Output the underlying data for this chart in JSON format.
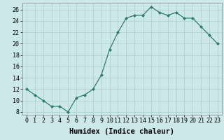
{
  "x": [
    0,
    1,
    2,
    3,
    4,
    5,
    6,
    7,
    8,
    9,
    10,
    11,
    12,
    13,
    14,
    15,
    16,
    17,
    18,
    19,
    20,
    21,
    22,
    23
  ],
  "y": [
    12,
    11,
    10,
    9,
    9,
    8,
    10.5,
    11,
    12,
    14.5,
    19,
    22,
    24.5,
    25,
    25,
    26.5,
    25.5,
    25,
    25.5,
    24.5,
    24.5,
    23,
    21.5,
    20
  ],
  "line_color": "#2e7d6e",
  "marker_color": "#2e7d6e",
  "bg_color": "#cce8e8",
  "grid_color": "#aacece",
  "xlabel": "Humidex (Indice chaleur)",
  "ylabel_ticks": [
    8,
    10,
    12,
    14,
    16,
    18,
    20,
    22,
    24,
    26
  ],
  "xlim": [
    -0.5,
    23.5
  ],
  "ylim": [
    7.5,
    27.2
  ],
  "xtick_labels": [
    "0",
    "1",
    "2",
    "3",
    "4",
    "5",
    "6",
    "7",
    "8",
    "9",
    "10",
    "11",
    "12",
    "13",
    "14",
    "15",
    "16",
    "17",
    "18",
    "19",
    "20",
    "21",
    "22",
    "23"
  ],
  "xlabel_fontsize": 7.5,
  "tick_fontsize": 6.0
}
